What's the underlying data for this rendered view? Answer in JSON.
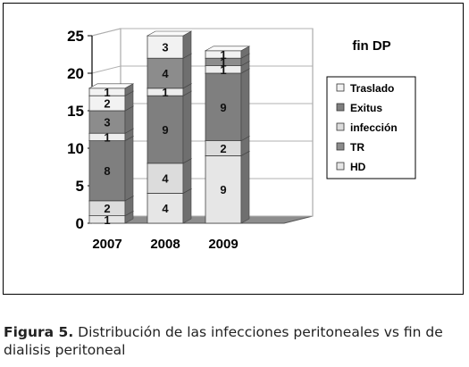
{
  "chart_data": {
    "type": "bar",
    "stacked": true,
    "three_d": true,
    "title": "fin DP",
    "categories": [
      "2007",
      "2008",
      "2009"
    ],
    "ylim": [
      0,
      25
    ],
    "yticks": [
      0,
      5,
      10,
      15,
      20,
      25
    ],
    "grid": true,
    "legend_position": "right",
    "series": [
      {
        "name": "HD",
        "values": [
          1,
          4,
          9
        ],
        "color": "#e6e6e6",
        "top_color": "#f4f4f4"
      },
      {
        "name": "TR",
        "values": [
          2,
          4,
          2
        ],
        "color": "#dcdcdc",
        "top_color": "#eeeeee"
      },
      {
        "name": "infección",
        "values": [
          8,
          9,
          9
        ],
        "color": "#7f7f7f",
        "top_color": "#9a9a9a"
      },
      {
        "name": "Exitus",
        "values": [
          1,
          1,
          1
        ],
        "color": "#ededed",
        "top_color": "#f7f7f7"
      },
      {
        "name": "Traslado",
        "values": [
          3,
          4,
          1
        ],
        "color": "#8c8c8c",
        "top_color": "#a6a6a6"
      },
      {
        "name": "",
        "values": [
          2,
          3,
          1
        ],
        "color": "#f2f2f2",
        "top_color": "#fafafa"
      },
      {
        "name": "",
        "values": [
          1,
          0,
          0
        ],
        "color": "#f2f2f2",
        "top_color": "#fafafa"
      }
    ],
    "legend": [
      "Traslado",
      "Exitus",
      "infección",
      "TR",
      "HD"
    ],
    "legend_colors": [
      "#f2f2f2",
      "#7f7f7f",
      "#dcdcdc",
      "#8c8c8c",
      "#e6e6e6"
    ]
  },
  "caption": {
    "label": "Figura 5.",
    "text": " Distribución de las infecciones peritoneales vs fin de dialisis peritoneal"
  }
}
